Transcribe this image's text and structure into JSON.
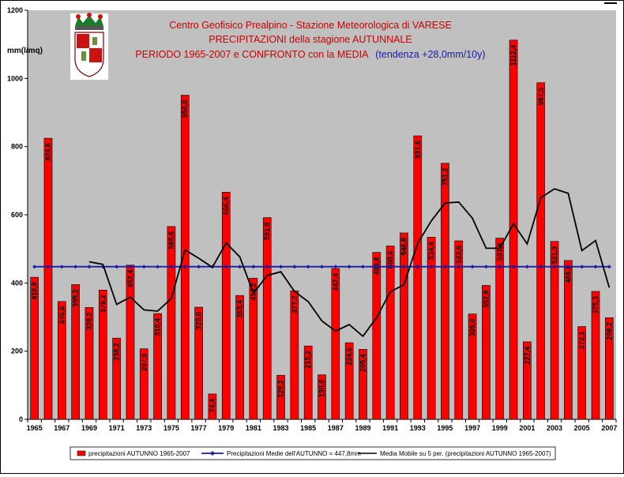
{
  "chart_data": {
    "type": "bar",
    "title_lines": [
      "Centro Geofisico Prealpino - Stazione Meteorologica di VARESE",
      "PRECIPITAZIONI della stagione AUTUNNALE",
      "PERIODO 1965-2007 e CONFRONTO con la MEDIA"
    ],
    "trend_text": "(tendenza +28,0mm/10y)",
    "ylabel": "mm(l/mq)",
    "ylim": [
      0,
      1200
    ],
    "yticks": [
      0,
      200,
      400,
      600,
      800,
      1000,
      1200
    ],
    "x": [
      1965,
      1966,
      1967,
      1968,
      1969,
      1970,
      1971,
      1972,
      1973,
      1974,
      1975,
      1976,
      1977,
      1978,
      1979,
      1980,
      1981,
      1982,
      1983,
      1984,
      1985,
      1986,
      1987,
      1988,
      1989,
      1990,
      1991,
      1992,
      1993,
      1994,
      1995,
      1996,
      1997,
      1998,
      1999,
      2000,
      2001,
      2002,
      2003,
      2004,
      2005,
      2006,
      2007
    ],
    "xtick_labels": [
      "1965",
      "1967",
      "1969",
      "1971",
      "1973",
      "1975",
      "1977",
      "1979",
      "1981",
      "1983",
      "1985",
      "1987",
      "1989",
      "1991",
      "1993",
      "1995",
      "1997",
      "1999",
      "2001",
      "2003",
      "2005",
      "2007"
    ],
    "series": [
      {
        "name": "precipitazioni AUTUNNO 1965-2007",
        "color": "#ff0000",
        "values": [
          416.8,
          824.6,
          345.6,
          395.2,
          328.2,
          379.2,
          238.2,
          452.4,
          207.0,
          310.4,
          565.6,
          950.8,
          329.0,
          74.4,
          666.4,
          363.4,
          414.2,
          591.8,
          129.2,
          377.2,
          215.2,
          130.6,
          442.4,
          224.6,
          205.4,
          489.8,
          508.6,
          546.8,
          831.6,
          534.4,
          751.2,
          523.6,
          309.0,
          392.8,
          531.6,
          1112.4,
          227.4,
          987.5,
          521.9,
          466.0,
          272.1,
          375.3,
          298.2
        ],
        "labels": [
          "416,8",
          "824,6",
          "345,6",
          "395,2",
          "328,2",
          "379,2",
          "238,2",
          "452,4",
          "207,0",
          "310,4",
          "565,6",
          "950,8",
          "329,0",
          "74,4",
          "666,4",
          "363,4",
          "414,2",
          "591,8",
          "129,2",
          "377,2",
          "215,2",
          "130,6",
          "442,4",
          "224,6",
          "205,4",
          "489,8",
          "508,6",
          "546,8",
          "831,6",
          "534,4",
          "751,2",
          "523,6",
          "309,0",
          "392,8",
          "531,6",
          "1112,4",
          "227,4",
          "987,5",
          "521,9",
          "466,0",
          "272,1",
          "375,3",
          "298,2"
        ]
      },
      {
        "name": "Precipitazioni Medie dell'AUTUNNO = 447,8mm",
        "color": "#1a1aa8",
        "constant": 447.8
      },
      {
        "name": "Media Mobile su 5 per. (precipitazioni AUTUNNO 1965-2007)",
        "color": "#000000",
        "moving_average_period": 5
      }
    ],
    "grid": false,
    "legend_position": "bottom"
  }
}
